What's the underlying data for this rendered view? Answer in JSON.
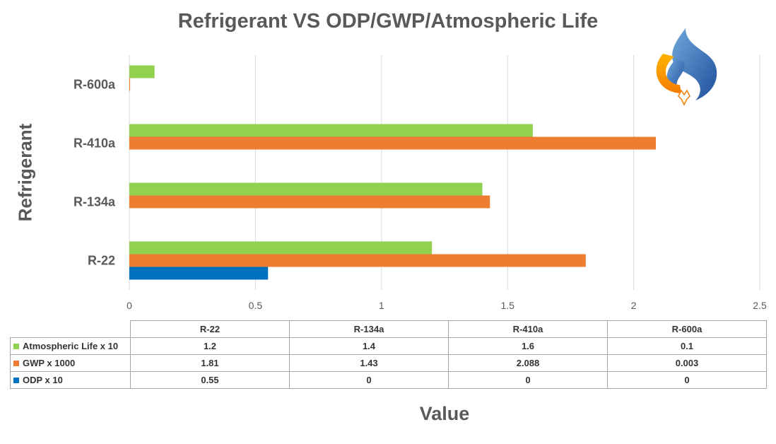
{
  "title": "Refrigerant VS ODP/GWP/Atmospheric Life",
  "ylabel": "Refrigerant",
  "xlabel": "Value",
  "logo_icon": "flame-logo-icon",
  "colors": {
    "atmospheric_life": "#92d050",
    "gwp": "#ed7d31",
    "odp": "#0070c0",
    "grid": "#d9d9d9",
    "text": "#595959"
  },
  "chart_data": {
    "type": "bar",
    "orientation": "horizontal",
    "title": "Refrigerant VS ODP/GWP/Atmospheric Life",
    "xlabel": "Value",
    "ylabel": "Refrigerant",
    "categories": [
      "R-22",
      "R-134a",
      "R-410a",
      "R-600a"
    ],
    "series": [
      {
        "name": "Atmospheric Life x 10",
        "values": [
          1.2,
          1.4,
          1.6,
          0.1
        ]
      },
      {
        "name": "GWP x 1000",
        "values": [
          1.81,
          1.43,
          2.088,
          0.003
        ]
      },
      {
        "name": "ODP x 10",
        "values": [
          0.55,
          0,
          0,
          0
        ]
      }
    ],
    "xlim": [
      0,
      2.5
    ],
    "x_ticks": [
      "0",
      "0.5",
      "1",
      "1.5",
      "2",
      "2.5"
    ],
    "grid": true,
    "legend": "data-table-below",
    "table": {
      "headers": [
        "R-22",
        "R-134a",
        "R-410a",
        "R-600a"
      ],
      "rows": [
        {
          "name": "Atmospheric Life x 10",
          "cells": [
            "1.2",
            "1.4",
            "1.6",
            "0.1"
          ]
        },
        {
          "name": "GWP x 1000",
          "cells": [
            "1.81",
            "1.43",
            "2.088",
            "0.003"
          ]
        },
        {
          "name": "ODP x 10",
          "cells": [
            "0.55",
            "0",
            "0",
            "0"
          ]
        }
      ]
    }
  }
}
